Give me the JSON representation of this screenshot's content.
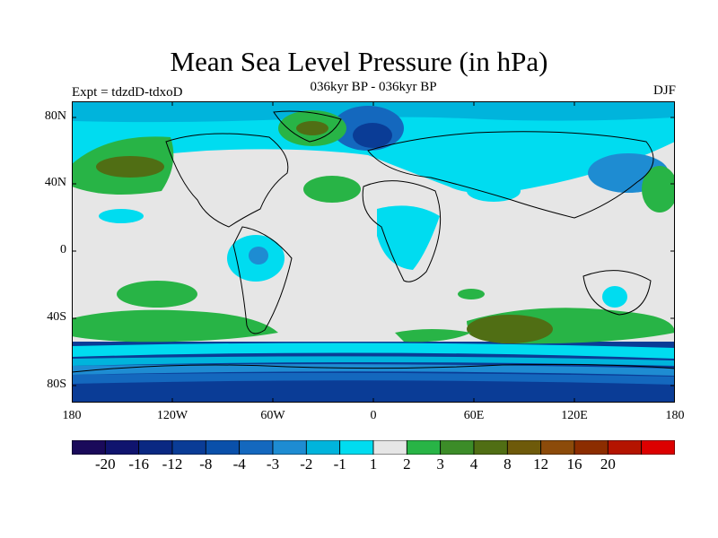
{
  "title": "Mean Sea Level Pressure (in hPa)",
  "subtitle": "036kyr BP - 036kyr BP",
  "left_label": "Expt = tdzdD-tdxoD",
  "right_label": "DJF",
  "map": {
    "lon_ticks": [
      "180",
      "120W",
      "60W",
      "0",
      "60E",
      "120E",
      "180"
    ],
    "lat_ticks": [
      "80N",
      "40N",
      "0",
      "40S",
      "80S"
    ]
  },
  "colorbar": {
    "colors": [
      "#1a0a5a",
      "#10146e",
      "#0a2882",
      "#0a3c96",
      "#0a50aa",
      "#1468be",
      "#1e8cd2",
      "#00b4dc",
      "#00dcf0",
      "#e6e6e6",
      "#28b446",
      "#3c8c28",
      "#506e14",
      "#6e5a0a",
      "#8c4b0a",
      "#8c2d00",
      "#b41400",
      "#dc0000"
    ],
    "labels": [
      "-20",
      "-16",
      "-12",
      "-8",
      "-4",
      "-3",
      "-2",
      "-1",
      "1",
      "2",
      "3",
      "4",
      "8",
      "12",
      "16",
      "20"
    ]
  },
  "colors": {
    "land_outline": "#000000",
    "neutral": "#e6e6e6"
  }
}
